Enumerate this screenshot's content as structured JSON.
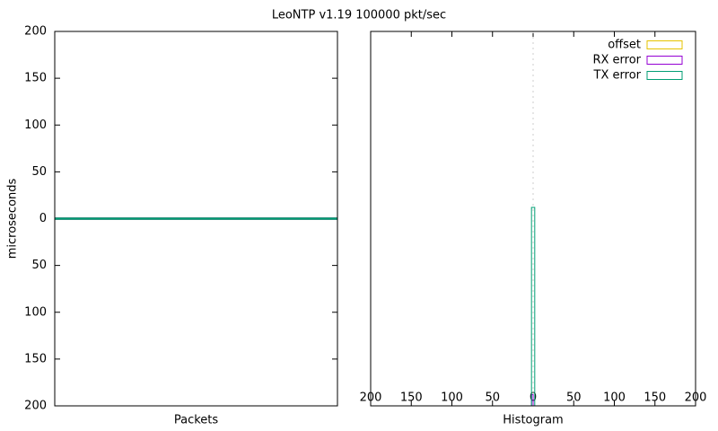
{
  "title": "LeoNTP v1.19 100000 pkt/sec",
  "chart_data": [
    {
      "type": "line",
      "ylabel": "microseconds",
      "xlabel": "Packets",
      "ylim": [
        -200,
        200
      ],
      "yticks": [
        {
          "value": -200,
          "label": "200"
        },
        {
          "value": -150,
          "label": "150"
        },
        {
          "value": -100,
          "label": "100"
        },
        {
          "value": -50,
          "label": "50"
        },
        0,
        50,
        100,
        150,
        200
      ],
      "series": [
        {
          "color": "#e6c300",
          "values": [
            0,
            0,
            0,
            0,
            0,
            0,
            0,
            0,
            0,
            0
          ]
        },
        {
          "color": "#9400d3",
          "values": [
            0,
            0,
            0,
            0,
            0,
            0,
            0,
            0,
            0,
            0
          ]
        },
        {
          "color": "#009e73",
          "values": [
            0,
            0,
            0,
            0,
            0,
            0,
            0,
            0,
            0,
            0
          ]
        }
      ]
    },
    {
      "type": "histogram",
      "xlabel": "Histogram",
      "xlim": [
        -200,
        200
      ],
      "xticks": [
        {
          "value": -200,
          "label": "200"
        },
        {
          "value": -150,
          "label": "150"
        },
        {
          "value": -100,
          "label": "100"
        },
        {
          "value": -50,
          "label": "50"
        },
        0,
        50,
        100,
        150,
        200
      ],
      "ylim": [
        0,
        1
      ],
      "legend": "top-right",
      "series": [
        {
          "name": "offset",
          "color": "#e6c300",
          "bins": [
            -2,
            2
          ],
          "counts": [
            0
          ]
        },
        {
          "name": "RX error",
          "color": "#9400d3",
          "bins": [
            -2,
            0
          ],
          "counts": [
            0.03
          ]
        },
        {
          "name": "TX error",
          "color": "#009e73",
          "bins": [
            -2,
            2
          ],
          "counts": [
            0.53
          ]
        }
      ]
    }
  ]
}
